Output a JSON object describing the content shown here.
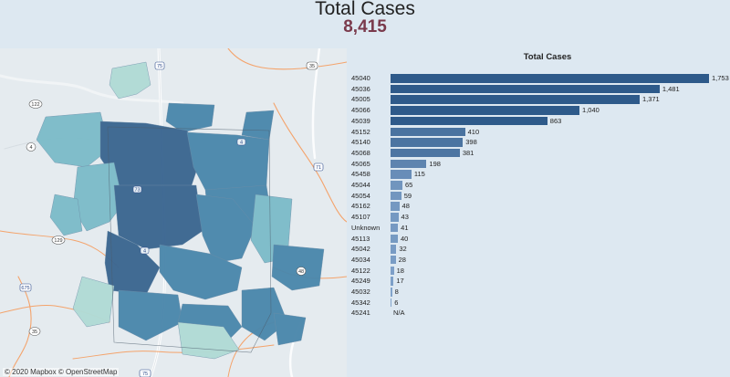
{
  "header": {
    "title": "Total Cases",
    "total": "8,415"
  },
  "map": {
    "attribution": "© 2020 Mapbox © OpenStreetMap",
    "road_labels": [
      "75",
      "35",
      "122",
      "4",
      "71",
      "129",
      "675",
      "35",
      "75",
      "73",
      "4",
      "4",
      "48"
    ],
    "palette": {
      "dark": "#3c6791",
      "mid": "#4c88ac",
      "light": "#7dbcc9",
      "pale": "#b1dbd6"
    }
  },
  "chart": {
    "title": "Total Cases"
  },
  "chart_data": {
    "type": "bar",
    "orientation": "horizontal",
    "title": "Total Cases",
    "categories": [
      "45040",
      "45036",
      "45005",
      "45066",
      "45039",
      "45152",
      "45140",
      "45068",
      "45065",
      "45458",
      "45044",
      "45054",
      "45162",
      "45107",
      "Unknown",
      "45113",
      "45042",
      "45034",
      "45122",
      "45249",
      "45032",
      "45342",
      "45241"
    ],
    "values": [
      1753,
      1481,
      1371,
      1040,
      863,
      410,
      398,
      381,
      198,
      115,
      65,
      59,
      48,
      43,
      41,
      40,
      32,
      28,
      18,
      17,
      8,
      6,
      null
    ],
    "value_labels": [
      "1,753",
      "1,481",
      "1,371",
      "1,040",
      "863",
      "410",
      "398",
      "381",
      "198",
      "115",
      "65",
      "59",
      "48",
      "43",
      "41",
      "40",
      "32",
      "28",
      "18",
      "17",
      "8",
      "6",
      "N/A"
    ],
    "xlim": [
      0,
      1753
    ],
    "colors": {
      "high": "#2e5a8a",
      "low": "#8aabd2"
    }
  }
}
